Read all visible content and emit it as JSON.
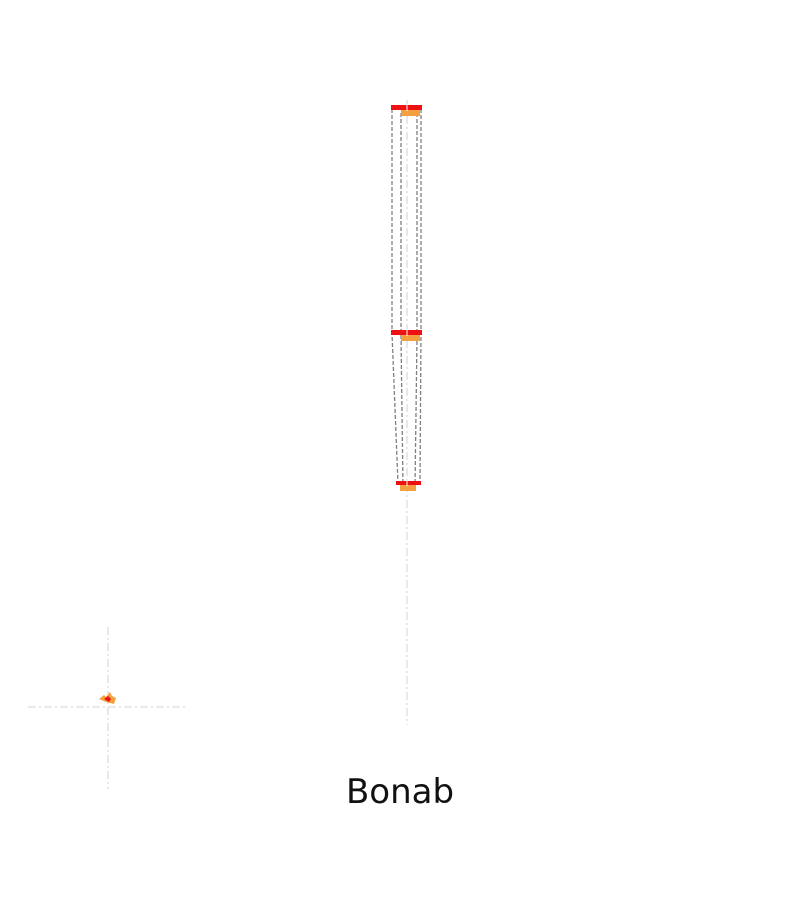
{
  "title": "Bonab",
  "colors": {
    "background": "#ffffff",
    "outline": "#808080",
    "guide": "#d9d9d9",
    "marker_primary": "#ee1111",
    "marker_secondary": "#f5a040",
    "text": "#111111"
  },
  "icons": {
    "emblem": "orange-flame-mark"
  }
}
